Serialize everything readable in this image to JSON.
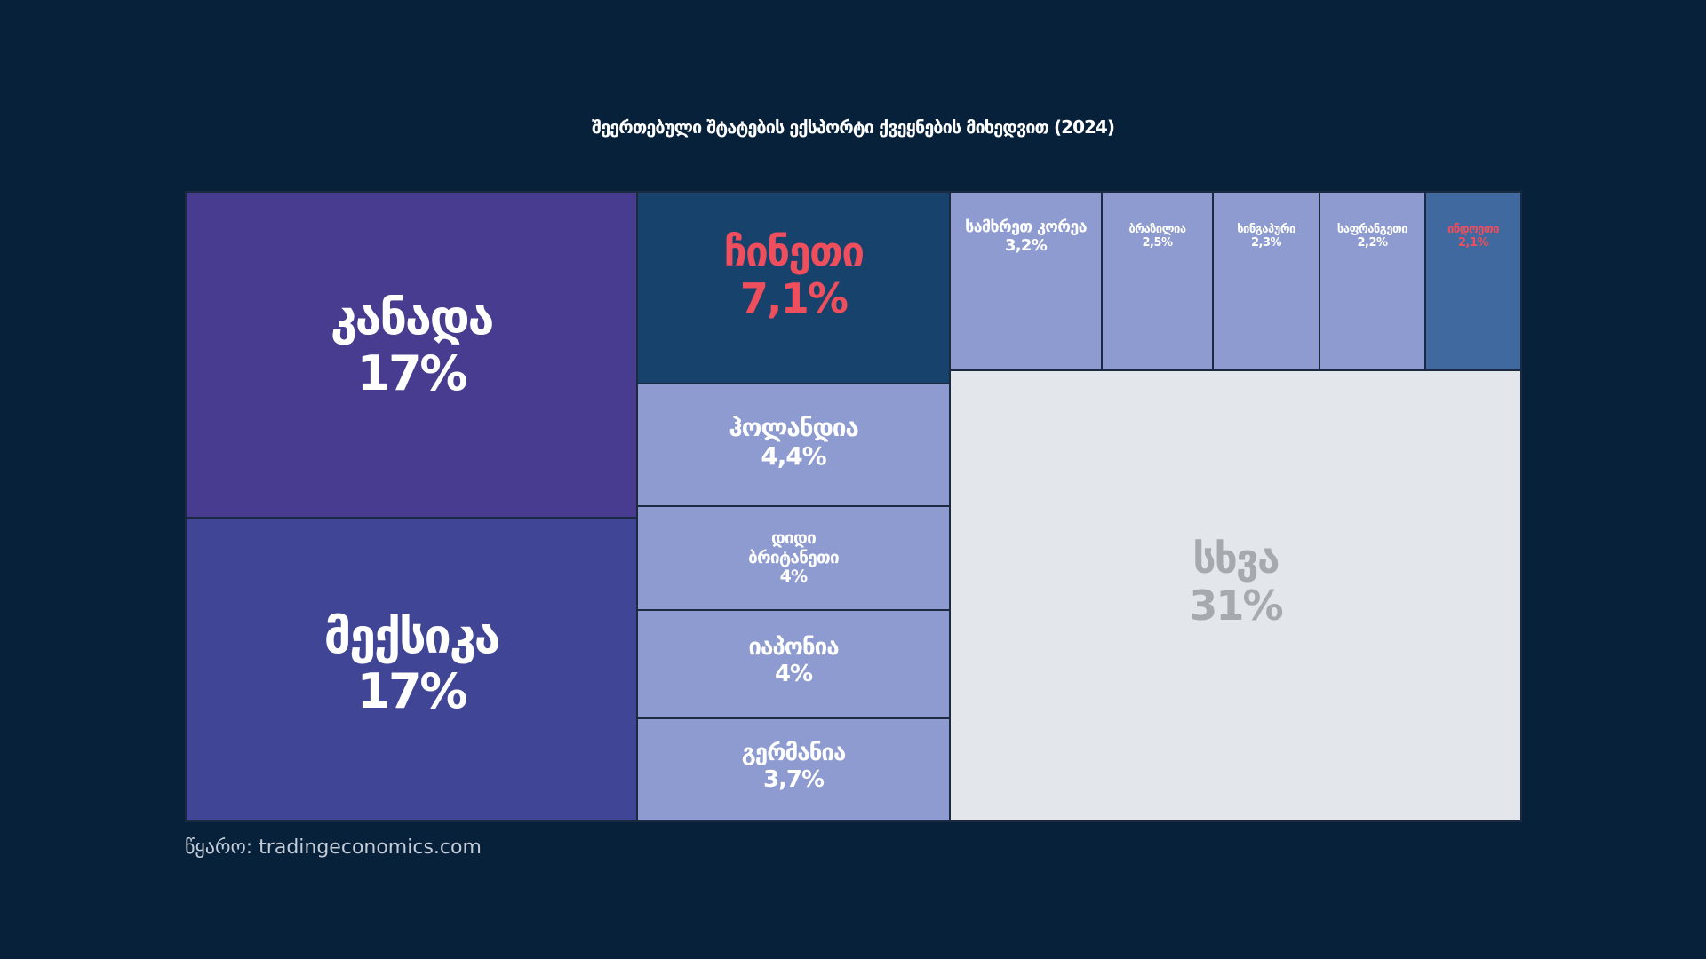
{
  "title": "შეერთებული შტატების ექსპორტი ქვეყნების მიხედვით (2024)",
  "source_label": "წყარო:",
  "source_site": "tradingeconomics.com",
  "colors": {
    "background": "#07213a",
    "tile_dark_purple": "#483c91",
    "tile_mid_purple": "#404596",
    "tile_dark_blue": "#17426c",
    "tile_light_blue": "#8d9bd0",
    "tile_steel_blue": "#406a9f",
    "tile_grey": "#e3e7eb",
    "text_white": "#ffffff",
    "text_highlight": "#ef4e5d",
    "text_grey": "#a6a9ad"
  },
  "chart_data": {
    "type": "treemap",
    "title": "შეერთებული შტატების ექსპორტი ქვეყნების მიხედვით (2024)",
    "unit": "%",
    "items": [
      {
        "name": "კანადა",
        "label": "17%",
        "value": 17,
        "fill": "#483c91",
        "text_color": "#ffffff"
      },
      {
        "name": "მექსიკა",
        "label": "17%",
        "value": 17,
        "fill": "#404596",
        "text_color": "#ffffff"
      },
      {
        "name": "ჩინეთი",
        "label": "7,1%",
        "value": 7.1,
        "fill": "#17426c",
        "text_color": "#ef4e5d"
      },
      {
        "name": "ჰოლანდია",
        "label": "4,4%",
        "value": 4.4,
        "fill": "#8d9bd0",
        "text_color": "#ffffff"
      },
      {
        "name": "დიდი\nბრიტანეთი",
        "label": "4%",
        "value": 4,
        "fill": "#8d9bd0",
        "text_color": "#ffffff"
      },
      {
        "name": "იაპონია",
        "label": "4%",
        "value": 4,
        "fill": "#8d9bd0",
        "text_color": "#ffffff"
      },
      {
        "name": "გერმანია",
        "label": "3,7%",
        "value": 3.7,
        "fill": "#8d9bd0",
        "text_color": "#ffffff"
      },
      {
        "name": "სამხრეთ კორეა",
        "label": "3,2%",
        "value": 3.2,
        "fill": "#8d9bd0",
        "text_color": "#ffffff"
      },
      {
        "name": "ბრაზილია",
        "label": "2,5%",
        "value": 2.5,
        "fill": "#8d9bd0",
        "text_color": "#ffffff"
      },
      {
        "name": "სინგაპური",
        "label": "2,3%",
        "value": 2.3,
        "fill": "#8d9bd0",
        "text_color": "#ffffff"
      },
      {
        "name": "საფრანგეთი",
        "label": "2,2%",
        "value": 2.2,
        "fill": "#8d9bd0",
        "text_color": "#ffffff"
      },
      {
        "name": "ინდოეთი",
        "label": "2,1%",
        "value": 2.1,
        "fill": "#406a9f",
        "text_color": "#ef4e5d"
      },
      {
        "name": "სხვა",
        "label": "31%",
        "value": 31,
        "fill": "#e3e7eb",
        "text_color": "#a6a9ad"
      }
    ]
  }
}
